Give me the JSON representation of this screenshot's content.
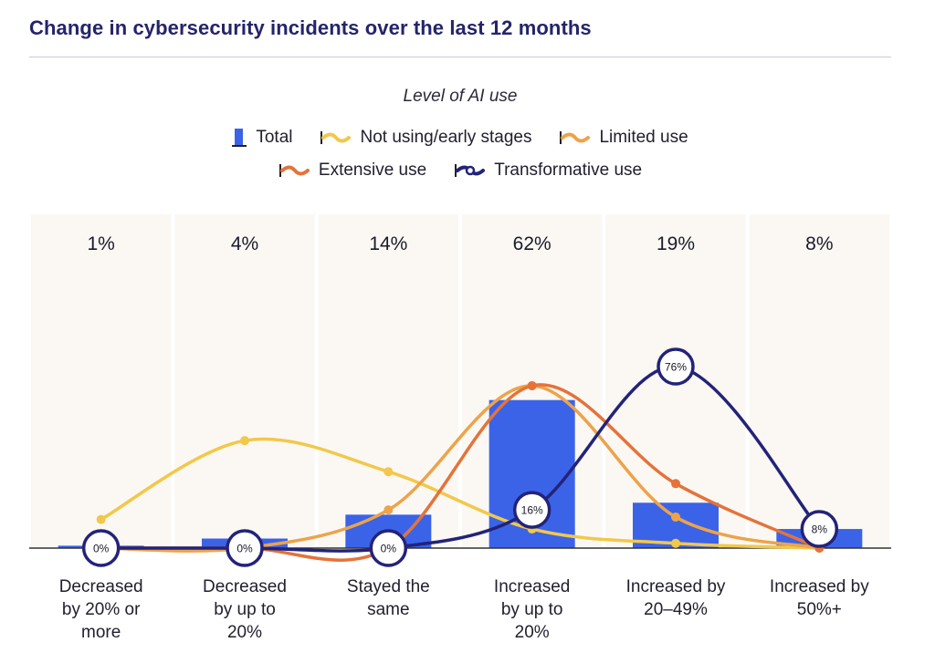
{
  "title": "Change in cybersecurity incidents over the last 12 months",
  "legend": {
    "title": "Level of AI use",
    "items": [
      {
        "label": "Total",
        "color": "#3b63e8",
        "kind": "bar"
      },
      {
        "label": "Not using/early stages",
        "color": "#f2c84b",
        "kind": "line"
      },
      {
        "label": "Limited use",
        "color": "#eda34a",
        "kind": "line"
      },
      {
        "label": "Extensive use",
        "color": "#e4733a",
        "kind": "line"
      },
      {
        "label": "Transformative use",
        "color": "#23237a",
        "kind": "line-circle"
      }
    ]
  },
  "chart_data": {
    "type": "bar",
    "categories": [
      [
        "Decreased",
        "by 20% or",
        "more"
      ],
      [
        "Decreased",
        "by up to",
        "20%"
      ],
      [
        "Stayed the",
        "same"
      ],
      [
        "Increased",
        "by up to",
        "20%"
      ],
      [
        "Increased by",
        "20–49%"
      ],
      [
        "Increased by",
        "50%+"
      ]
    ],
    "column_labels": [
      "1%",
      "4%",
      "14%",
      "62%",
      "19%",
      "8%"
    ],
    "ylim": [
      0,
      85
    ],
    "series": [
      {
        "name": "Total",
        "kind": "bar",
        "color": "#3b63e8",
        "values": [
          1,
          4,
          14,
          62,
          19,
          8
        ]
      },
      {
        "name": "Not using/early stages",
        "kind": "line",
        "color": "#f2c84b",
        "values": [
          12,
          45,
          32,
          8,
          2,
          0
        ]
      },
      {
        "name": "Limited use",
        "kind": "line",
        "color": "#eda34a",
        "values": [
          0,
          0,
          16,
          68,
          13,
          0
        ]
      },
      {
        "name": "Extensive use",
        "kind": "line",
        "color": "#e4733a",
        "values": [
          0,
          0,
          0,
          68,
          27,
          0
        ]
      },
      {
        "name": "Transformative use",
        "kind": "line-circle",
        "color": "#23237a",
        "values": [
          0,
          0,
          0,
          16,
          76,
          8
        ],
        "point_labels": [
          "0%",
          "0%",
          "0%",
          "16%",
          "76%",
          "8%"
        ]
      }
    ]
  }
}
